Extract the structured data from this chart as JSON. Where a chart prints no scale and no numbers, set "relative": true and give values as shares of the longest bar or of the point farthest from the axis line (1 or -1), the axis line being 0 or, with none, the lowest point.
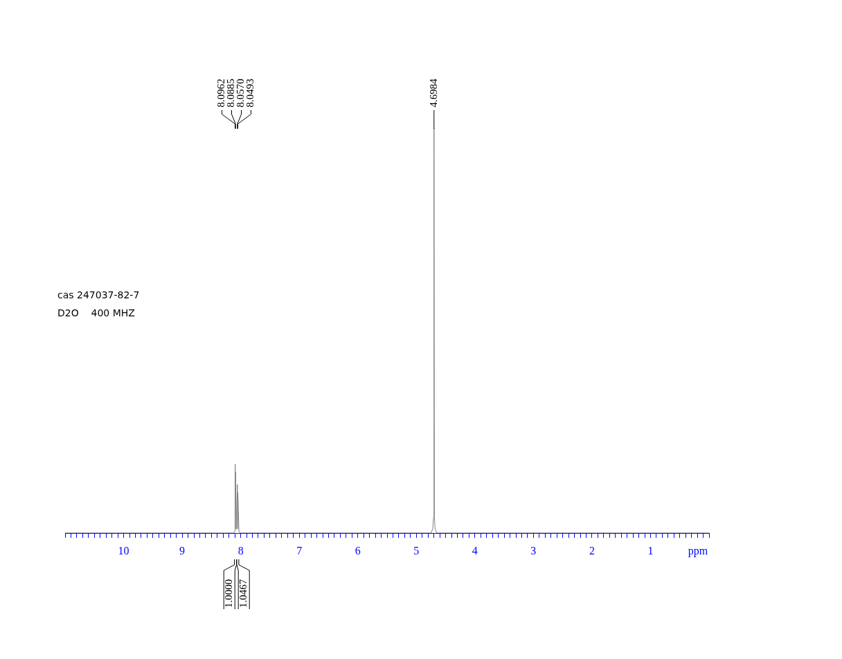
{
  "chart_data": {
    "type": "line",
    "relative": true,
    "xlabel": "ppm",
    "xlim": [
      11,
      0
    ],
    "xticks": [
      {
        "value": 11,
        "label": null
      },
      {
        "value": 10.9,
        "label": null
      },
      {
        "value": 10.8,
        "label": null
      },
      {
        "value": 10.7,
        "label": null
      },
      {
        "value": 10.6,
        "label": null
      },
      {
        "value": 10.5,
        "label": null
      },
      {
        "value": 10.4,
        "label": null
      },
      {
        "value": 10.3,
        "label": null
      },
      {
        "value": 10.2,
        "label": null
      },
      {
        "value": 10.1,
        "label": null
      },
      10,
      {
        "value": 9.9,
        "label": null
      },
      {
        "value": 9.8,
        "label": null
      },
      {
        "value": 9.7,
        "label": null
      },
      {
        "value": 9.6,
        "label": null
      },
      {
        "value": 9.5,
        "label": null
      },
      {
        "value": 9.4,
        "label": null
      },
      {
        "value": 9.3,
        "label": null
      },
      {
        "value": 9.2,
        "label": null
      },
      {
        "value": 9.1,
        "label": null
      },
      9,
      {
        "value": 8.9,
        "label": null
      },
      {
        "value": 8.8,
        "label": null
      },
      {
        "value": 8.7,
        "label": null
      },
      {
        "value": 8.6,
        "label": null
      },
      {
        "value": 8.5,
        "label": null
      },
      {
        "value": 8.4,
        "label": null
      },
      {
        "value": 8.3,
        "label": null
      },
      {
        "value": 8.2,
        "label": null
      },
      {
        "value": 8.1,
        "label": null
      },
      8,
      {
        "value": 7.9,
        "label": null
      },
      {
        "value": 7.8,
        "label": null
      },
      {
        "value": 7.7,
        "label": null
      },
      {
        "value": 7.6,
        "label": null
      },
      {
        "value": 7.5,
        "label": null
      },
      {
        "value": 7.4,
        "label": null
      },
      {
        "value": 7.3,
        "label": null
      },
      {
        "value": 7.2,
        "label": null
      },
      {
        "value": 7.1,
        "label": null
      },
      7,
      {
        "value": 6.9,
        "label": null
      },
      {
        "value": 6.8,
        "label": null
      },
      {
        "value": 6.7,
        "label": null
      },
      {
        "value": 6.6,
        "label": null
      },
      {
        "value": 6.5,
        "label": null
      },
      {
        "value": 6.4,
        "label": null
      },
      {
        "value": 6.3,
        "label": null
      },
      {
        "value": 6.2,
        "label": null
      },
      {
        "value": 6.1,
        "label": null
      },
      6,
      {
        "value": 5.9,
        "label": null
      },
      {
        "value": 5.8,
        "label": null
      },
      {
        "value": 5.7,
        "label": null
      },
      {
        "value": 5.6,
        "label": null
      },
      {
        "value": 5.5,
        "label": null
      },
      {
        "value": 5.4,
        "label": null
      },
      {
        "value": 5.3,
        "label": null
      },
      {
        "value": 5.2,
        "label": null
      },
      {
        "value": 5.1,
        "label": null
      },
      5,
      {
        "value": 4.9,
        "label": null
      },
      {
        "value": 4.8,
        "label": null
      },
      {
        "value": 4.7,
        "label": null
      },
      {
        "value": 4.6,
        "label": null
      },
      {
        "value": 4.5,
        "label": null
      },
      {
        "value": 4.4,
        "label": null
      },
      {
        "value": 4.3,
        "label": null
      },
      {
        "value": 4.2,
        "label": null
      },
      {
        "value": 4.1,
        "label": null
      },
      4,
      {
        "value": 3.9,
        "label": null
      },
      {
        "value": 3.8,
        "label": null
      },
      {
        "value": 3.7,
        "label": null
      },
      {
        "value": 3.6,
        "label": null
      },
      {
        "value": 3.5,
        "label": null
      },
      {
        "value": 3.4,
        "label": null
      },
      {
        "value": 3.3,
        "label": null
      },
      {
        "value": 3.2,
        "label": null
      },
      {
        "value": 3.1,
        "label": null
      },
      3,
      {
        "value": 2.9,
        "label": null
      },
      {
        "value": 2.8,
        "label": null
      },
      {
        "value": 2.7,
        "label": null
      },
      {
        "value": 2.6,
        "label": null
      },
      {
        "value": 2.5,
        "label": null
      },
      {
        "value": 2.4,
        "label": null
      },
      {
        "value": 2.3,
        "label": null
      },
      {
        "value": 2.2,
        "label": null
      },
      {
        "value": 2.1,
        "label": null
      },
      2,
      {
        "value": 1.9,
        "label": null
      },
      {
        "value": 1.8,
        "label": null
      },
      {
        "value": 1.7,
        "label": null
      },
      {
        "value": 1.6,
        "label": null
      },
      {
        "value": 1.5,
        "label": null
      },
      {
        "value": 1.4,
        "label": null
      },
      {
        "value": 1.3,
        "label": null
      },
      {
        "value": 1.2,
        "label": null
      },
      {
        "value": 1.1,
        "label": null
      },
      1,
      {
        "value": 0.9,
        "label": null
      },
      {
        "value": 0.8,
        "label": null
      },
      {
        "value": 0.7,
        "label": null
      },
      {
        "value": 0.6,
        "label": null
      },
      {
        "value": 0.5,
        "label": null
      },
      {
        "value": 0.4,
        "label": null
      },
      {
        "value": 0.3,
        "label": null
      },
      {
        "value": 0.2,
        "label": null
      },
      {
        "value": 0.1,
        "label": null
      },
      {
        "value": 0,
        "label": null
      }
    ],
    "series": [
      {
        "color": "#808080",
        "x": [
          11,
          8.12,
          8.1,
          8.0962,
          8.092,
          8.0885,
          8.075,
          8.057,
          8.053,
          8.0493,
          8.03,
          8.0,
          4.75,
          4.72,
          4.705,
          4.6984,
          4.692,
          4.68,
          4.65,
          0
        ],
        "values": [
          0,
          0,
          0.005,
          0.17,
          0.01,
          0.15,
          0.01,
          0.12,
          0.01,
          0.1,
          0.003,
          0,
          0,
          0.01,
          0.04,
          1,
          0.04,
          0.01,
          0,
          0
        ]
      }
    ],
    "annotations": [
      {
        "text": "8.0962",
        "x": 8.0962
      },
      {
        "text": "8.0885",
        "x": 8.0885
      },
      {
        "text": "8.0570",
        "x": 8.057
      },
      {
        "text": "8.0493",
        "x": 8.0493
      },
      {
        "text": "4.6984",
        "x": 4.6984
      },
      {
        "text": "1.0000",
        "x": 8.09
      },
      {
        "text": "1.0467",
        "x": 8.05
      },
      "cas 247037-82-7",
      "D2O    400 MHZ"
    ]
  }
}
